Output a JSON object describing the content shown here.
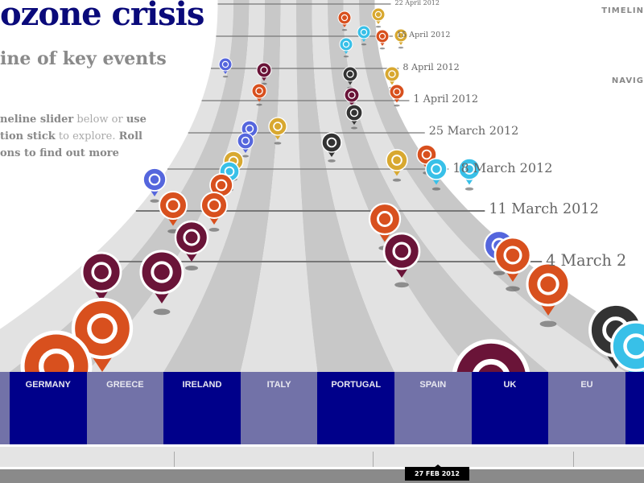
{
  "header": {
    "title": "ozone crisis",
    "subtitle": "ine of key events",
    "intro": [
      {
        "t": "neline slider",
        "b": true
      },
      {
        "t": " below or ",
        "b": false
      },
      {
        "t": "use",
        "b": true
      },
      {
        "t": " tion stick",
        "b": true
      },
      {
        "t": " to explore. ",
        "b": false
      },
      {
        "t": "Roll",
        "b": true
      },
      {
        "t": " ons to find out more",
        "b": true
      }
    ]
  },
  "right_nav": {
    "timeline": "TIMELIN",
    "navigation": "NAVIG"
  },
  "dates": [
    "22 April 2012",
    "15 April 2012",
    "8 April 2012",
    "1 April 2012",
    "25 March 2012",
    "18 March 2012",
    "11 March 2012",
    "4 March 2"
  ],
  "countries": [
    "GERMANY",
    "GREECE",
    "IRELAND",
    "ITALY",
    "PORTUGAL",
    "SPAIN",
    "UK",
    "EU"
  ],
  "slider": {
    "current": "27 FEB 2012"
  },
  "colors": {
    "column_dark": "#00008a",
    "column_light": "#7272a8",
    "rescue": "#d8501e",
    "protest": "#6a1438",
    "eu": "#5566dd",
    "gold": "#d8a830",
    "cyan": "#38c0e8",
    "black": "#333333"
  }
}
